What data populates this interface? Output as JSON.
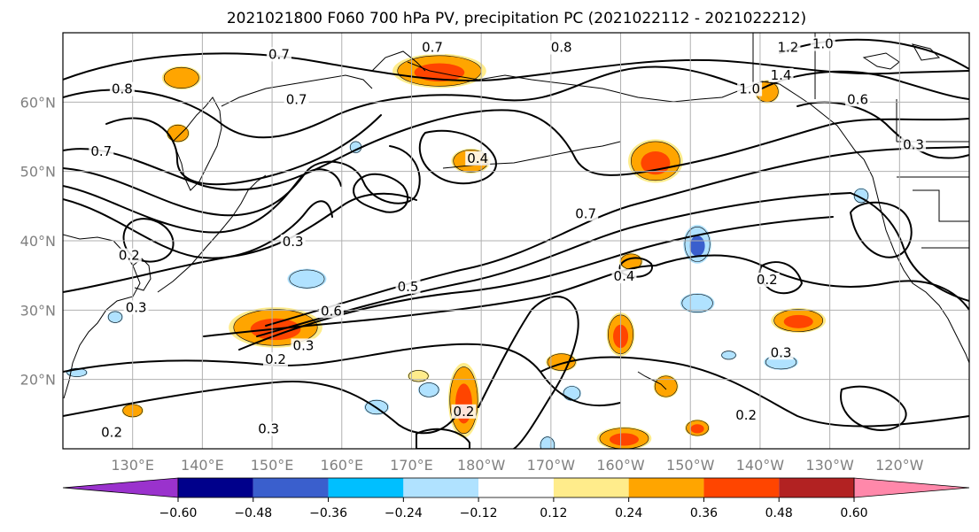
{
  "title": "2021021800 F060 700 hPa PV, precipitation PC (2021022112 - 2021022212)",
  "map": {
    "lon_range": [
      120,
      250
    ],
    "lat_range": [
      10,
      70
    ],
    "lat_ticks": [
      {
        "value": 20,
        "label": "20°N"
      },
      {
        "value": 30,
        "label": "30°N"
      },
      {
        "value": 40,
        "label": "40°N"
      },
      {
        "value": 50,
        "label": "50°N"
      },
      {
        "value": 60,
        "label": "60°N"
      }
    ],
    "lon_ticks": [
      {
        "value": 130,
        "label": "130°E"
      },
      {
        "value": 140,
        "label": "140°E"
      },
      {
        "value": 150,
        "label": "150°E"
      },
      {
        "value": 160,
        "label": "160°E"
      },
      {
        "value": 170,
        "label": "170°E"
      },
      {
        "value": 180,
        "label": "180°W"
      },
      {
        "value": 190,
        "label": "170°W"
      },
      {
        "value": 200,
        "label": "160°W"
      },
      {
        "value": 210,
        "label": "150°W"
      },
      {
        "value": 220,
        "label": "140°W"
      },
      {
        "value": 230,
        "label": "130°W"
      },
      {
        "value": 240,
        "label": "120°W"
      }
    ]
  },
  "pv_contour_labels": [
    {
      "text": "0.7",
      "lon": 151,
      "lat": 66.5
    },
    {
      "text": "0.7",
      "lon": 173,
      "lat": 67.5
    },
    {
      "text": "0.8",
      "lon": 191.5,
      "lat": 67.5
    },
    {
      "text": "1.2",
      "lon": 224,
      "lat": 67.5
    },
    {
      "text": "1.0",
      "lon": 229,
      "lat": 68
    },
    {
      "text": "1.4",
      "lon": 223,
      "lat": 63.5
    },
    {
      "text": "1.0",
      "lon": 218.5,
      "lat": 61.5
    },
    {
      "text": "0.6",
      "lon": 234,
      "lat": 60
    },
    {
      "text": "0.3",
      "lon": 242,
      "lat": 53.5
    },
    {
      "text": "0.8",
      "lon": 128.5,
      "lat": 61.5
    },
    {
      "text": "0.7",
      "lon": 153.5,
      "lat": 60
    },
    {
      "text": "0.7",
      "lon": 125.5,
      "lat": 52.5
    },
    {
      "text": "0.4",
      "lon": 179.5,
      "lat": 51.5
    },
    {
      "text": "0.7",
      "lon": 195,
      "lat": 43.5
    },
    {
      "text": "0.3",
      "lon": 153,
      "lat": 39.5
    },
    {
      "text": "0.2",
      "lon": 129.5,
      "lat": 37.5
    },
    {
      "text": "0.4",
      "lon": 200.5,
      "lat": 34.5
    },
    {
      "text": "0.2",
      "lon": 221,
      "lat": 34
    },
    {
      "text": "0.5",
      "lon": 169.5,
      "lat": 33
    },
    {
      "text": "0.6",
      "lon": 158.5,
      "lat": 29.5
    },
    {
      "text": "0.3",
      "lon": 130.5,
      "lat": 30
    },
    {
      "text": "0.3",
      "lon": 154.5,
      "lat": 24.5
    },
    {
      "text": "0.2",
      "lon": 150.5,
      "lat": 22.5
    },
    {
      "text": "0.3",
      "lon": 223,
      "lat": 23.5
    },
    {
      "text": "0.2",
      "lon": 177.5,
      "lat": 15
    },
    {
      "text": "0.2",
      "lon": 218,
      "lat": 14.5
    },
    {
      "text": "0.3",
      "lon": 149.5,
      "lat": 12.5
    },
    {
      "text": "0.2",
      "lon": 127,
      "lat": 12
    }
  ],
  "precipitation_blobs": [
    {
      "lon": 137,
      "lat": 63.5,
      "rx": 2.5,
      "ry": 1.5,
      "level": 0.24
    },
    {
      "lon": 136.5,
      "lat": 55.5,
      "rx": 1.5,
      "ry": 1.2,
      "level": 0.24
    },
    {
      "lon": 174,
      "lat": 64.5,
      "rx": 6,
      "ry": 2.2,
      "level": 0.36
    },
    {
      "lon": 221,
      "lat": 61.5,
      "rx": 1.6,
      "ry": 1.5,
      "level": 0.24
    },
    {
      "lon": 178.5,
      "lat": 51.5,
      "rx": 2.5,
      "ry": 1.6,
      "level": 0.24
    },
    {
      "lon": 205,
      "lat": 51.5,
      "rx": 3.5,
      "ry": 2.8,
      "level": 0.36
    },
    {
      "lon": 150.5,
      "lat": 27.5,
      "rx": 6,
      "ry": 2.6,
      "level": 0.36
    },
    {
      "lon": 201.5,
      "lat": 37,
      "rx": 1.5,
      "ry": 1.1,
      "level": 0.24
    },
    {
      "lon": 200,
      "lat": 26.5,
      "rx": 1.8,
      "ry": 2.8,
      "level": 0.36
    },
    {
      "lon": 177.5,
      "lat": 17,
      "rx": 2,
      "ry": 4.8,
      "level": 0.36
    },
    {
      "lon": 191.5,
      "lat": 22.5,
      "rx": 2,
      "ry": 1.2,
      "level": 0.24
    },
    {
      "lon": 206.5,
      "lat": 19,
      "rx": 1.6,
      "ry": 1.5,
      "level": 0.24
    },
    {
      "lon": 225.5,
      "lat": 28.5,
      "rx": 3.5,
      "ry": 1.6,
      "level": 0.36
    },
    {
      "lon": 200.5,
      "lat": 11.5,
      "rx": 3.5,
      "ry": 1.5,
      "level": 0.36
    },
    {
      "lon": 211,
      "lat": 13,
      "rx": 1.6,
      "ry": 1.1,
      "level": 0.36
    },
    {
      "lon": 130,
      "lat": 15.5,
      "rx": 1.4,
      "ry": 0.9,
      "level": 0.24
    },
    {
      "lon": 171,
      "lat": 20.5,
      "rx": 1.4,
      "ry": 0.8,
      "level": 0.12
    },
    {
      "lon": 155,
      "lat": 34.5,
      "rx": 2.5,
      "ry": 1.3,
      "level": -0.24
    },
    {
      "lon": 211,
      "lat": 39.5,
      "rx": 1.8,
      "ry": 2.5,
      "level": -0.48
    },
    {
      "lon": 211,
      "lat": 31,
      "rx": 2.2,
      "ry": 1.3,
      "level": -0.24
    },
    {
      "lon": 223,
      "lat": 22.5,
      "rx": 2.2,
      "ry": 1,
      "level": -0.24
    },
    {
      "lon": 165,
      "lat": 16,
      "rx": 1.6,
      "ry": 1,
      "level": -0.24
    },
    {
      "lon": 172.5,
      "lat": 18.5,
      "rx": 1.4,
      "ry": 1,
      "level": -0.24
    },
    {
      "lon": 193,
      "lat": 18,
      "rx": 1.2,
      "ry": 1,
      "level": -0.24
    },
    {
      "lon": 127.5,
      "lat": 29,
      "rx": 1,
      "ry": 0.8,
      "level": -0.24
    },
    {
      "lon": 162,
      "lat": 53.5,
      "rx": 0.8,
      "ry": 0.8,
      "level": -0.24
    },
    {
      "lon": 189.5,
      "lat": 10.5,
      "rx": 1,
      "ry": 1.2,
      "level": -0.24
    },
    {
      "lon": 122,
      "lat": 21,
      "rx": 1.4,
      "ry": 0.6,
      "level": -0.24
    },
    {
      "lon": 234.5,
      "lat": 46.5,
      "rx": 1,
      "ry": 1,
      "level": -0.24
    },
    {
      "lon": 215.5,
      "lat": 23.5,
      "rx": 1,
      "ry": 0.6,
      "level": -0.24
    }
  ],
  "colorbar": {
    "colors": [
      "#9a32cd",
      "#00008b",
      "#3a5fcd",
      "#00bfff",
      "#b0e2ff",
      "#ffffff",
      "#ffec8b",
      "#ffa500",
      "#ff4500",
      "#b22222",
      "#ff88aa"
    ],
    "tick_labels": [
      "−0.60",
      "−0.48",
      "−0.36",
      "−0.24",
      "−0.12",
      "0.12",
      "0.24",
      "0.36",
      "0.48",
      "0.60"
    ]
  }
}
